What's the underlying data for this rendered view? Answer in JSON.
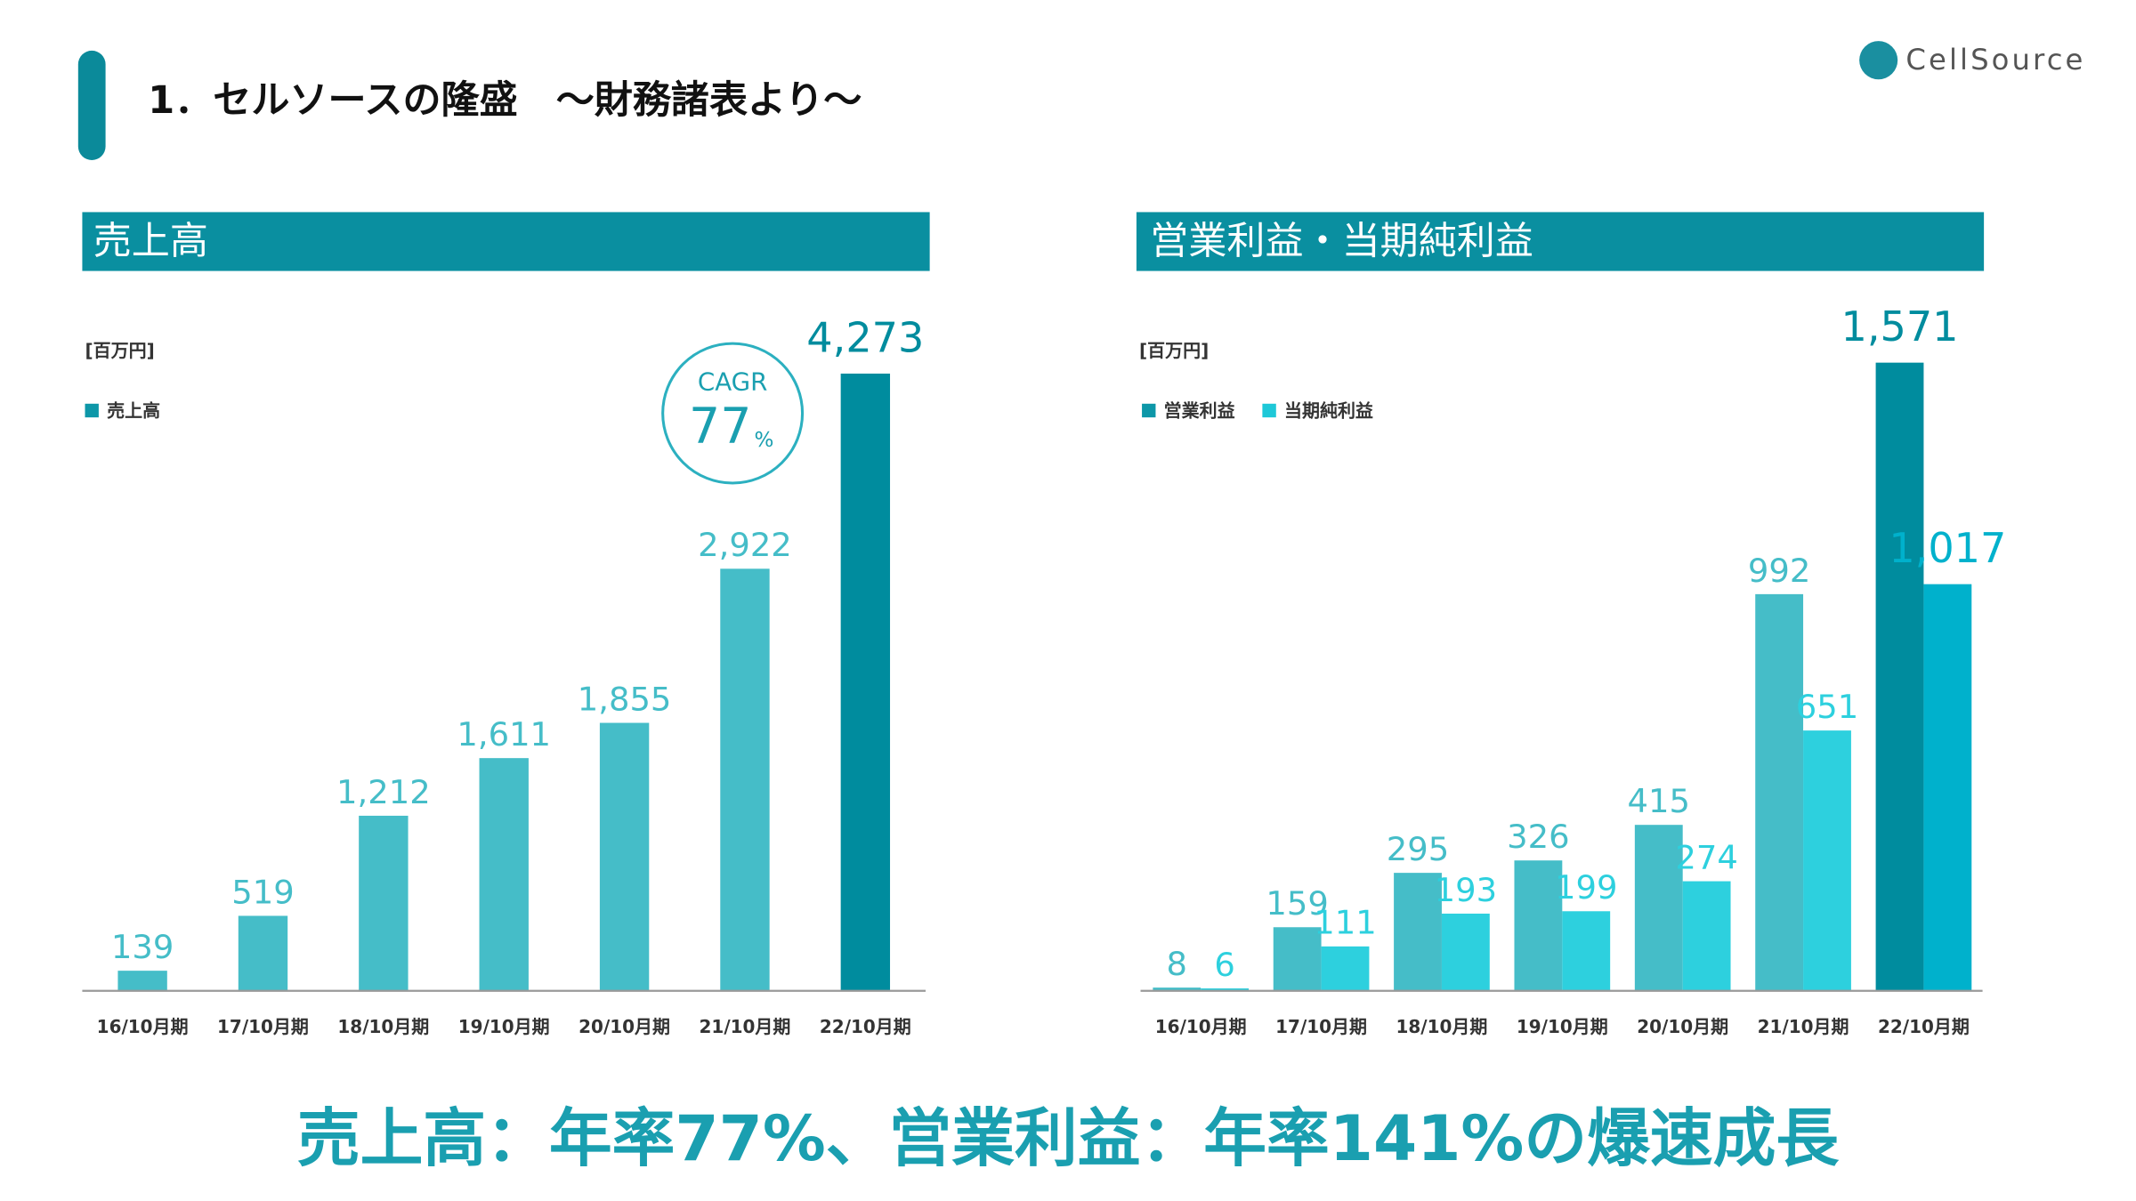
{
  "header": {
    "title": "1．セルソースの隆盛　～財務諸表より～",
    "logo": "CellSource"
  },
  "chart_data": [
    {
      "type": "bar",
      "title": "売上高",
      "unit": "[百万円]",
      "categories": [
        "16/10月期",
        "17/10月期",
        "18/10月期",
        "19/10月期",
        "20/10月期",
        "21/10月期",
        "22/10月期"
      ],
      "series": [
        {
          "name": "売上高",
          "color": "#0d97a8",
          "colors": [
            "#45bdc8",
            "#45bdc8",
            "#45bdc8",
            "#45bdc8",
            "#45bdc8",
            "#45bdc8",
            "#008c9e"
          ],
          "values": [
            139,
            519,
            1212,
            1611,
            1855,
            2922,
            4273
          ],
          "value_labels": [
            "139",
            "519",
            "1,212",
            "1,611",
            "1,855",
            "2,922",
            "4,273"
          ]
        }
      ],
      "ylim": [
        0,
        4273
      ],
      "annotation": {
        "label": "CAGR",
        "value": "77",
        "unit": "%"
      }
    },
    {
      "type": "bar",
      "title": "営業利益・当期純利益",
      "unit": "[百万円]",
      "categories": [
        "16/10月期",
        "17/10月期",
        "18/10月期",
        "19/10月期",
        "20/10月期",
        "21/10月期",
        "22/10月期"
      ],
      "series": [
        {
          "name": "営業利益",
          "color": "#0d97a8",
          "colors": [
            "#45bdc8",
            "#45bdc8",
            "#45bdc8",
            "#45bdc8",
            "#45bdc8",
            "#45bdc8",
            "#008c9e"
          ],
          "values": [
            8,
            159,
            295,
            326,
            415,
            992,
            1571
          ],
          "value_labels": [
            "8",
            "159",
            "295",
            "326",
            "415",
            "992",
            "1,571"
          ]
        },
        {
          "name": "当期純利益",
          "color": "#1ec8d8",
          "colors": [
            "#2dd0de",
            "#2dd0de",
            "#2dd0de",
            "#2dd0de",
            "#2dd0de",
            "#2dd0de",
            "#00b1cc"
          ],
          "values": [
            6,
            111,
            193,
            199,
            274,
            651,
            1017
          ],
          "value_labels": [
            "6",
            "111",
            "193",
            "199",
            "274",
            "651",
            "1,017"
          ]
        }
      ],
      "ylim": [
        0,
        1571
      ]
    }
  ],
  "footer": "売上高：年率77%、営業利益：年率141%の爆速成長"
}
